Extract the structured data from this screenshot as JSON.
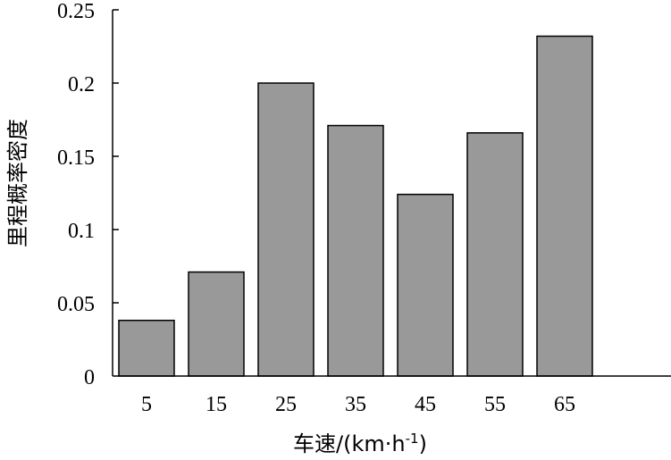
{
  "chart_data": {
    "type": "bar",
    "categories": [
      "5",
      "15",
      "25",
      "35",
      "45",
      "55",
      "65"
    ],
    "values": [
      0.038,
      0.071,
      0.2,
      0.171,
      0.124,
      0.166,
      0.232
    ],
    "title": "",
    "xlabel_main": "车速/(km·h",
    "xlabel_sup": "-1",
    "xlabel_close": ")",
    "ylabel": "里程概率密度",
    "ylim": [
      0,
      0.25
    ],
    "yticks": [
      "0",
      "0.05",
      "0.1",
      "0.15",
      "0.2",
      "0.25"
    ],
    "grid": false,
    "legend": "none",
    "bar_color": "#999999"
  }
}
